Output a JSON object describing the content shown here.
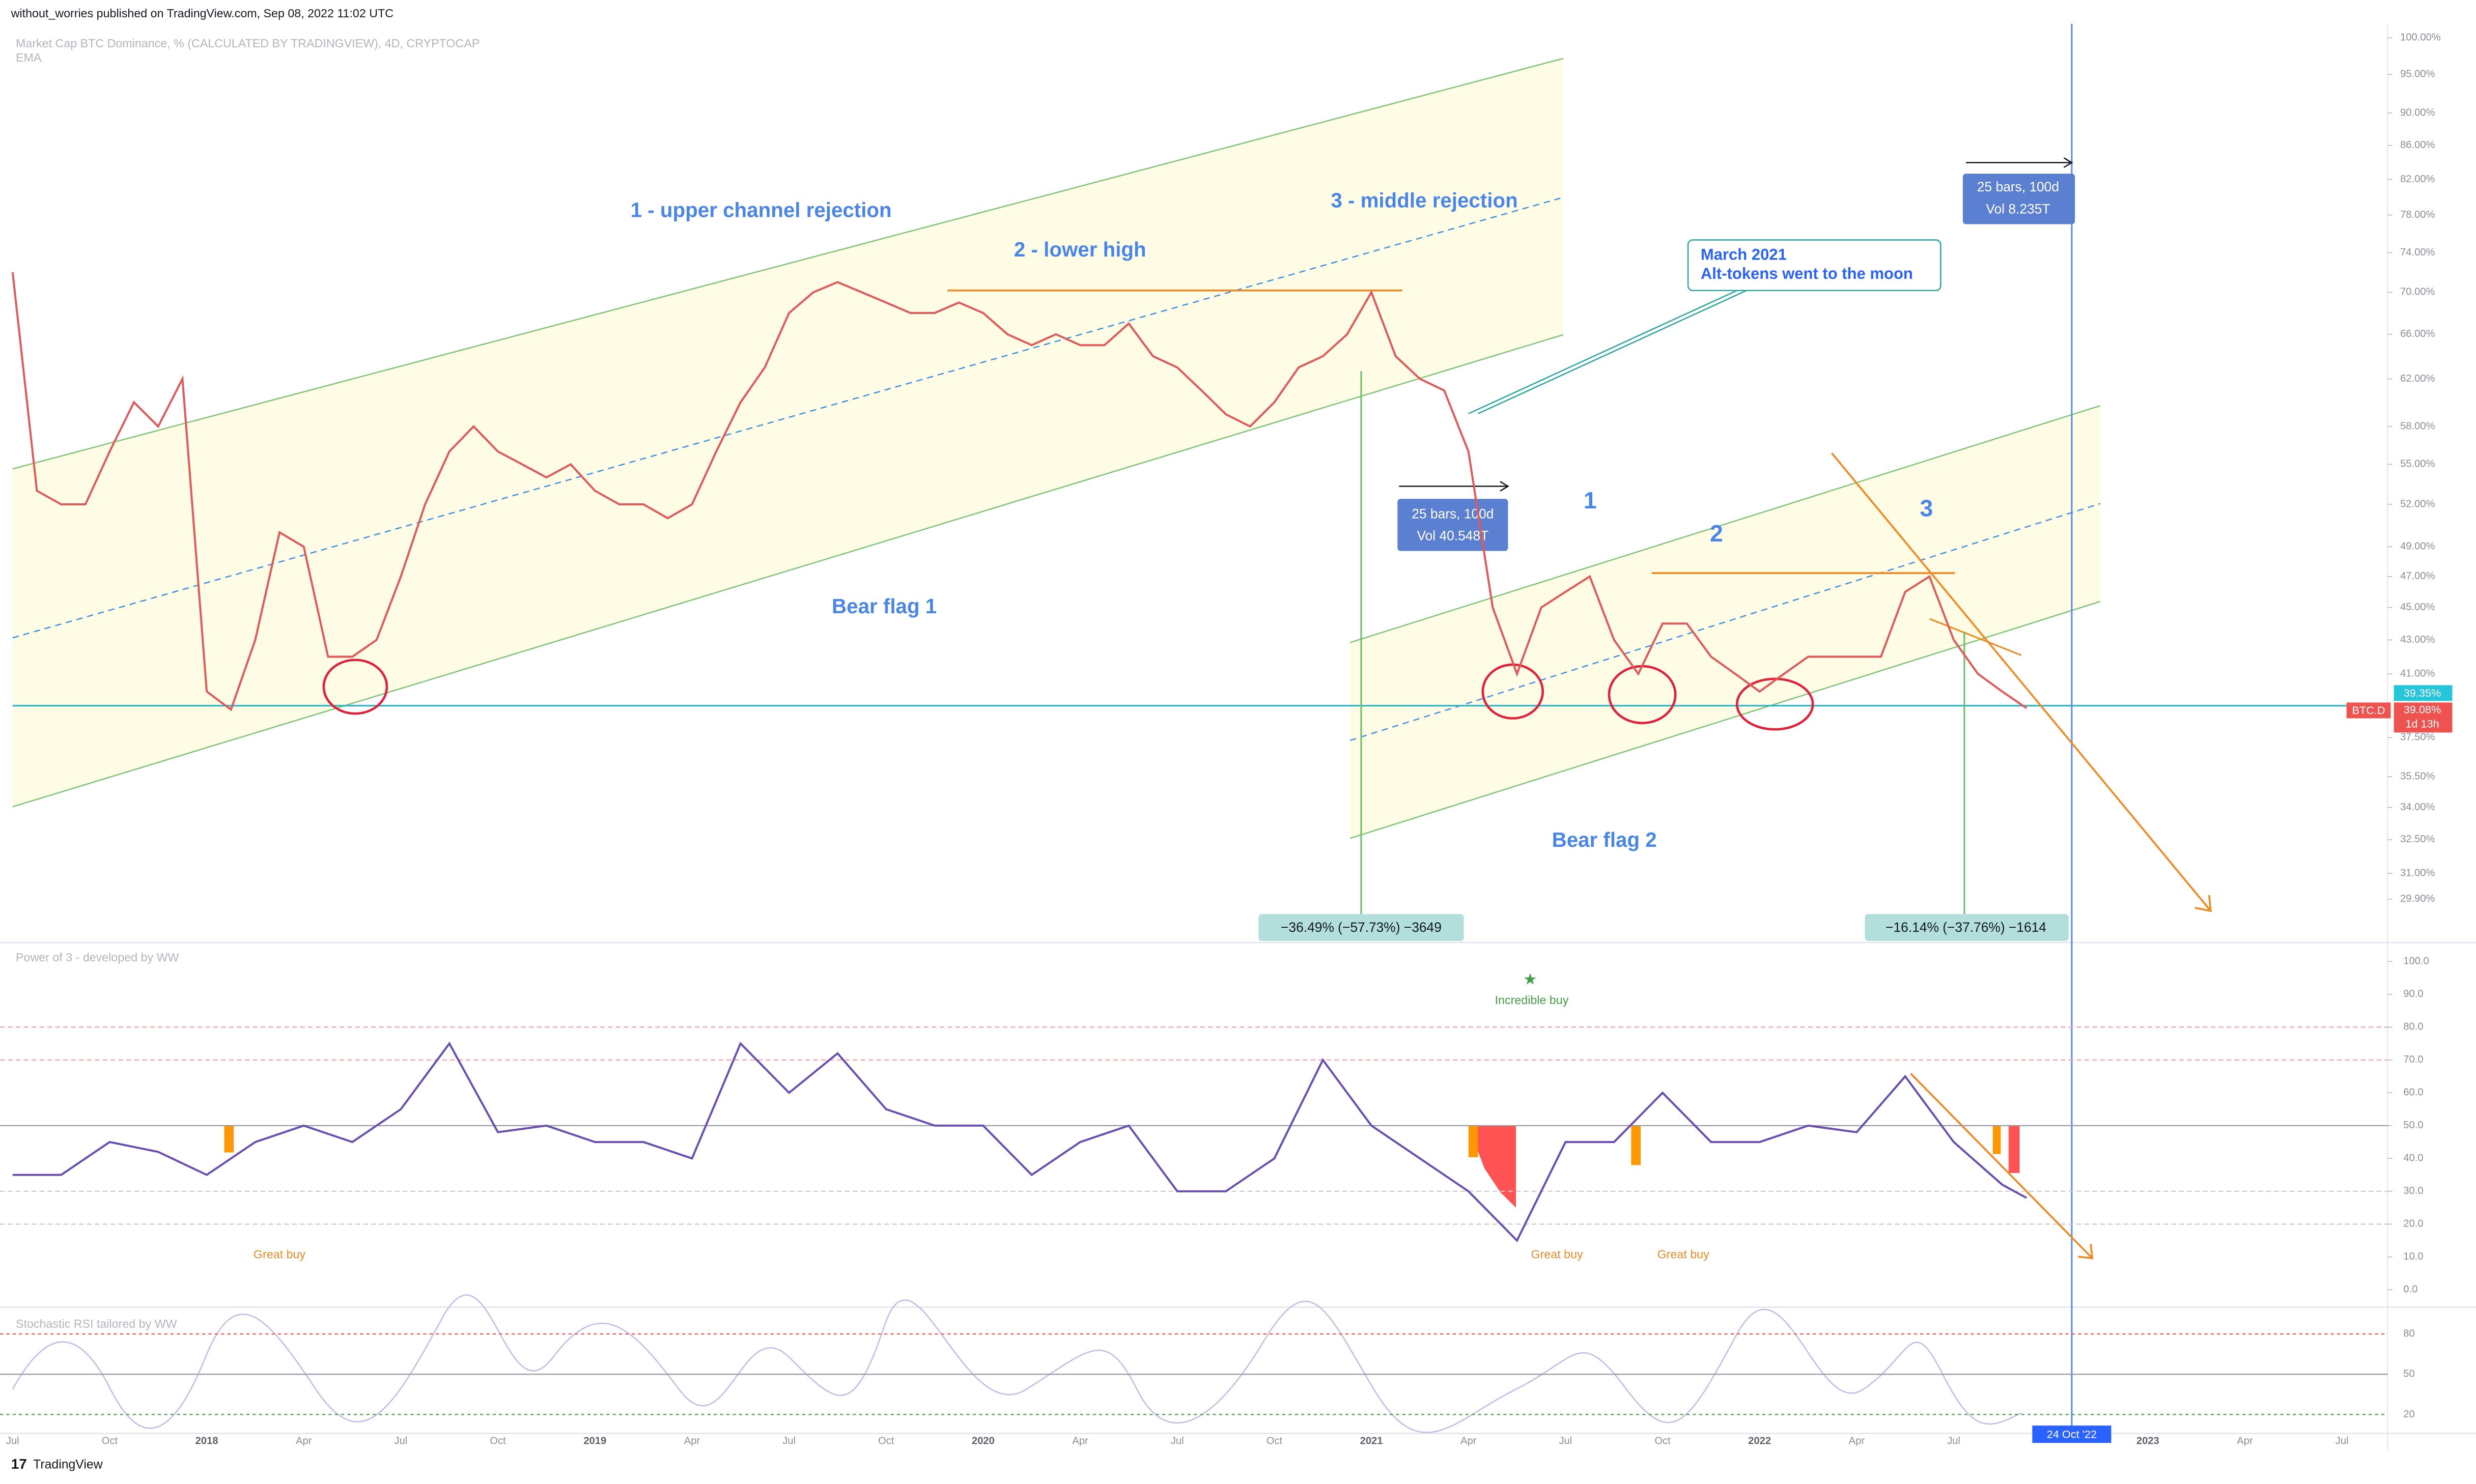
{
  "header": {
    "text": "without_worries published on TradingView.com, Sep 08, 2022 11:02 UTC"
  },
  "legend": {
    "symbol": "Market Cap BTC Dominance, % (CALCULATED BY TRADINGVIEW), 4D, CRYPTOCAP",
    "study": "EMA"
  },
  "chart_data": {
    "type": "line",
    "log_scale": true,
    "color": "#e05a5a",
    "x": [
      0,
      0.25,
      0.5,
      0.75,
      1,
      1.25,
      1.5,
      1.75,
      2,
      2.25,
      2.5,
      2.75,
      3,
      3.25,
      3.5,
      3.75,
      4,
      4.25,
      4.5,
      4.75,
      5,
      5.25,
      5.5,
      5.75,
      6,
      6.25,
      6.5,
      6.75,
      7,
      7.25,
      7.5,
      7.75,
      8,
      8.25,
      8.5,
      8.75,
      9,
      9.25,
      9.5,
      9.75,
      10,
      10.25,
      10.5,
      10.75,
      11,
      11.25,
      11.5,
      11.75,
      12,
      12.25,
      12.5,
      12.75,
      13,
      13.25,
      13.5,
      13.75,
      14,
      14.25,
      14.5,
      14.75,
      15,
      15.25,
      15.5,
      15.75,
      16,
      16.25,
      16.5,
      16.75,
      17,
      17.25,
      17.5,
      17.75,
      18,
      18.25,
      18.5,
      18.75,
      19,
      19.25,
      19.5,
      19.75,
      20,
      20.25,
      20.5,
      20.75
    ],
    "values": [
      72,
      53,
      52,
      52,
      56,
      60,
      58,
      62,
      40,
      39,
      43,
      50,
      49,
      42,
      42,
      43,
      47,
      52,
      56,
      58,
      56,
      55,
      54,
      55,
      53,
      52,
      52,
      51,
      52,
      56,
      60,
      63,
      68,
      70,
      71,
      70,
      69,
      68,
      68,
      69,
      68,
      66,
      65,
      66,
      65,
      65,
      67,
      64,
      63,
      61,
      59,
      58,
      60,
      63,
      64,
      66,
      70,
      64,
      62,
      61,
      56,
      45,
      41,
      45,
      46,
      47,
      43,
      41,
      44,
      44,
      42,
      41,
      40,
      41,
      42,
      42,
      42,
      42,
      46,
      47,
      43,
      41,
      40,
      39.08
    ],
    "xlim": [
      -0.13,
      24.47
    ],
    "ylim": [
      28.2,
      102
    ],
    "yticks": [
      {
        "value": 100,
        "label": "100.00%"
      },
      {
        "value": 95,
        "label": "95.00%"
      },
      {
        "value": 90,
        "label": "90.00%"
      },
      {
        "value": 86,
        "label": "86.00%"
      },
      {
        "value": 82,
        "label": "82.00%"
      },
      {
        "value": 78,
        "label": "78.00%"
      },
      {
        "value": 74,
        "label": "74.00%"
      },
      {
        "value": 70,
        "label": "70.00%"
      },
      {
        "value": 66,
        "label": "66.00%"
      },
      {
        "value": 62,
        "label": "62.00%"
      },
      {
        "value": 58,
        "label": "58.00%"
      },
      {
        "value": 55,
        "label": "55.00%"
      },
      {
        "value": 52,
        "label": "52.00%"
      },
      {
        "value": 49,
        "label": "49.00%"
      },
      {
        "value": 47,
        "label": "47.00%"
      },
      {
        "value": 45,
        "label": "45.00%"
      },
      {
        "value": 43,
        "label": "43.00%"
      },
      {
        "value": 41,
        "label": "41.00%"
      },
      {
        "value": 37.5,
        "label": "37.50%"
      },
      {
        "value": 35.5,
        "label": "35.50%"
      },
      {
        "value": 34,
        "label": "34.00%"
      },
      {
        "value": 32.5,
        "label": "32.50%"
      },
      {
        "value": 31,
        "label": "31.00%"
      },
      {
        "value": 29.9,
        "label": "29.90%"
      }
    ],
    "time_labels": [
      "Jul",
      "Oct",
      "2018",
      "Apr",
      "Jul",
      "Oct",
      "2019",
      "Apr",
      "Jul",
      "Oct",
      "2020",
      "Apr",
      "Jul",
      "Oct",
      "2021",
      "Apr",
      "Jul",
      "Oct",
      "2022",
      "Apr",
      "Jul",
      null,
      "2023",
      "Apr",
      "Jul"
    ],
    "crosshair_time": "24 Oct '22",
    "price_labels": {
      "last": "39.35%",
      "symbol": "BTC.D",
      "close": "39.08%",
      "countdown": "1d 13h"
    }
  },
  "annotations": {
    "upper": "1 - upper channel rejection",
    "lower_high": "2 - lower high",
    "middle": "3 - middle rejection",
    "bear_flag_1": "Bear flag 1",
    "bear_flag_2": "Bear flag 2",
    "n1": "1",
    "n2": "2",
    "n3": "3",
    "callout_title": "March 2021",
    "callout_text": "Alt-tokens went to the moon",
    "range1_bars": "25 bars, 100d",
    "range1_vol": "Vol 40.548T",
    "range2_bars": "25 bars, 100d",
    "range2_vol": "Vol 8.235T",
    "measure1": "−36.49% (−57.73%) −3649",
    "measure2": "−16.14% (−37.76%) −1614"
  },
  "power": {
    "title": "Power of 3 - developed by WW",
    "color": "#6a4fb3",
    "ylim": [
      0,
      100
    ],
    "yticks": [
      {
        "value": 100,
        "label": "100.0"
      },
      {
        "value": 90,
        "label": "90.0"
      },
      {
        "value": 80,
        "label": "80.0"
      },
      {
        "value": 70,
        "label": "70.0"
      },
      {
        "value": 60,
        "label": "60.0"
      },
      {
        "value": 50,
        "label": "50.0"
      },
      {
        "value": 40,
        "label": "40.0"
      },
      {
        "value": 30,
        "label": "30.0"
      },
      {
        "value": 20,
        "label": "20.0"
      },
      {
        "value": 10,
        "label": "10.0"
      },
      {
        "value": 0,
        "label": "0.0"
      }
    ],
    "x": [
      0,
      0.5,
      1,
      1.5,
      2,
      2.5,
      3,
      3.5,
      4,
      4.5,
      5,
      5.5,
      6,
      6.5,
      7,
      7.5,
      8,
      8.5,
      9,
      9.5,
      10,
      10.5,
      11,
      11.5,
      12,
      12.5,
      13,
      13.5,
      14,
      14.5,
      15,
      15.5,
      16,
      16.5,
      17,
      17.5,
      18,
      18.5,
      19,
      19.5,
      20,
      20.5,
      20.75
    ],
    "values": [
      35,
      35,
      45,
      42,
      35,
      45,
      50,
      45,
      55,
      75,
      48,
      50,
      45,
      45,
      40,
      75,
      60,
      72,
      55,
      50,
      50,
      35,
      45,
      50,
      30,
      30,
      40,
      70,
      50,
      40,
      30,
      15,
      45,
      45,
      60,
      45,
      45,
      50,
      48,
      65,
      45,
      32,
      28
    ],
    "incredible": "Incredible buy",
    "great": [
      "Great buy",
      "Great buy",
      "Great buy"
    ]
  },
  "stoch": {
    "title": "Stochastic RSI tailored by WW",
    "ylim": [
      0,
      100
    ],
    "yticks": [
      80,
      50,
      20
    ]
  },
  "footer": {
    "brand": "TradingView"
  }
}
